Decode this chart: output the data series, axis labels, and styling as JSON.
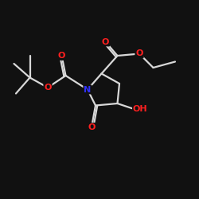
{
  "background_color": "#111111",
  "bond_color": "#d8d8d8",
  "atom_colors": {
    "O": "#ff2020",
    "N": "#3030ff",
    "C": "#d8d8d8"
  },
  "figsize": [
    2.5,
    2.5
  ],
  "dpi": 100,
  "bond_lw": 1.6,
  "font_size": 7.5
}
